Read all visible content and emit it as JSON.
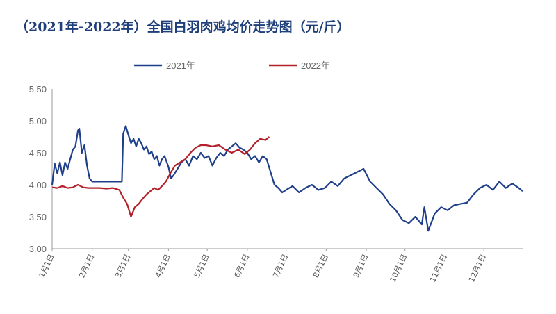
{
  "chart_data": {
    "type": "line",
    "title": "（2021年-2022年）全国白羽肉鸡均价走势图（元/斤）",
    "xlabel": "",
    "ylabel": "",
    "ylim": [
      3.0,
      5.5
    ],
    "yticks": [
      "3.00",
      "3.50",
      "4.00",
      "4.50",
      "5.00",
      "5.50"
    ],
    "x_tick_labels": [
      "1月1日",
      "2月1日",
      "3月1日",
      "4月1日",
      "5月1日",
      "6月1日",
      "7月1日",
      "8月1日",
      "9月1日",
      "10月1日",
      "11月1日",
      "12月1日"
    ],
    "legend_position": "top",
    "grid": false,
    "colors": {
      "2021": "#1f3f8a",
      "2022": "#b3202a"
    },
    "series": [
      {
        "name": "2021年",
        "points": [
          [
            "1/1",
            4.0
          ],
          [
            "1/3",
            4.33
          ],
          [
            "1/5",
            4.18
          ],
          [
            "1/7",
            4.35
          ],
          [
            "1/9",
            4.15
          ],
          [
            "1/11",
            4.35
          ],
          [
            "1/13",
            4.25
          ],
          [
            "1/15",
            4.4
          ],
          [
            "1/17",
            4.55
          ],
          [
            "1/19",
            4.6
          ],
          [
            "1/21",
            4.85
          ],
          [
            "1/22",
            4.88
          ],
          [
            "1/24",
            4.5
          ],
          [
            "1/26",
            4.62
          ],
          [
            "1/28",
            4.3
          ],
          [
            "1/30",
            4.1
          ],
          [
            "2/1",
            4.05
          ],
          [
            "2/5",
            4.05
          ],
          [
            "2/10",
            4.05
          ],
          [
            "2/15",
            4.05
          ],
          [
            "2/20",
            4.05
          ],
          [
            "2/24",
            4.05
          ],
          [
            "2/25",
            4.8
          ],
          [
            "2/27",
            4.92
          ],
          [
            "3/1",
            4.78
          ],
          [
            "3/3",
            4.65
          ],
          [
            "3/5",
            4.72
          ],
          [
            "3/7",
            4.6
          ],
          [
            "3/9",
            4.72
          ],
          [
            "3/11",
            4.65
          ],
          [
            "3/13",
            4.55
          ],
          [
            "3/15",
            4.6
          ],
          [
            "3/17",
            4.48
          ],
          [
            "3/19",
            4.52
          ],
          [
            "3/21",
            4.4
          ],
          [
            "3/23",
            4.45
          ],
          [
            "3/25",
            4.3
          ],
          [
            "3/27",
            4.4
          ],
          [
            "3/29",
            4.45
          ],
          [
            "4/1",
            4.28
          ],
          [
            "4/3",
            4.1
          ],
          [
            "4/5",
            4.15
          ],
          [
            "4/8",
            4.25
          ],
          [
            "4/11",
            4.35
          ],
          [
            "4/14",
            4.4
          ],
          [
            "4/17",
            4.3
          ],
          [
            "4/20",
            4.45
          ],
          [
            "4/23",
            4.4
          ],
          [
            "4/26",
            4.5
          ],
          [
            "4/29",
            4.42
          ],
          [
            "5/2",
            4.45
          ],
          [
            "5/5",
            4.3
          ],
          [
            "5/8",
            4.42
          ],
          [
            "5/11",
            4.5
          ],
          [
            "5/14",
            4.45
          ],
          [
            "5/17",
            4.55
          ],
          [
            "5/20",
            4.6
          ],
          [
            "5/23",
            4.65
          ],
          [
            "5/26",
            4.58
          ],
          [
            "5/29",
            4.55
          ],
          [
            "6/1",
            4.5
          ],
          [
            "6/4",
            4.4
          ],
          [
            "6/7",
            4.45
          ],
          [
            "6/10",
            4.35
          ],
          [
            "6/13",
            4.45
          ],
          [
            "6/16",
            4.4
          ],
          [
            "6/19",
            4.2
          ],
          [
            "6/22",
            4.0
          ],
          [
            "6/25",
            3.95
          ],
          [
            "6/28",
            3.88
          ],
          [
            "7/1",
            3.92
          ],
          [
            "7/6",
            3.98
          ],
          [
            "7/11",
            3.88
          ],
          [
            "7/16",
            3.95
          ],
          [
            "7/21",
            4.0
          ],
          [
            "7/26",
            3.92
          ],
          [
            "7/31",
            3.95
          ],
          [
            "8/5",
            4.05
          ],
          [
            "8/10",
            3.98
          ],
          [
            "8/15",
            4.1
          ],
          [
            "8/20",
            4.15
          ],
          [
            "8/25",
            4.2
          ],
          [
            "8/30",
            4.25
          ],
          [
            "9/4",
            4.05
          ],
          [
            "9/9",
            3.95
          ],
          [
            "9/14",
            3.85
          ],
          [
            "9/19",
            3.7
          ],
          [
            "9/24",
            3.6
          ],
          [
            "9/29",
            3.45
          ],
          [
            "10/4",
            3.4
          ],
          [
            "10/9",
            3.5
          ],
          [
            "10/14",
            3.38
          ],
          [
            "10/16",
            3.65
          ],
          [
            "10/19",
            3.28
          ],
          [
            "10/24",
            3.55
          ],
          [
            "10/29",
            3.65
          ],
          [
            "11/3",
            3.6
          ],
          [
            "11/8",
            3.68
          ],
          [
            "11/13",
            3.7
          ],
          [
            "11/18",
            3.72
          ],
          [
            "11/23",
            3.85
          ],
          [
            "11/28",
            3.95
          ],
          [
            "12/3",
            4.0
          ],
          [
            "12/8",
            3.92
          ],
          [
            "12/13",
            4.05
          ],
          [
            "12/18",
            3.95
          ],
          [
            "12/23",
            4.02
          ],
          [
            "12/28",
            3.95
          ],
          [
            "12/31",
            3.9
          ]
        ]
      },
      {
        "name": "2022年",
        "points": [
          [
            "1/1",
            3.96
          ],
          [
            "1/5",
            3.95
          ],
          [
            "1/9",
            3.98
          ],
          [
            "1/13",
            3.95
          ],
          [
            "1/17",
            3.96
          ],
          [
            "1/21",
            4.0
          ],
          [
            "1/25",
            3.96
          ],
          [
            "1/29",
            3.95
          ],
          [
            "2/2",
            3.95
          ],
          [
            "2/7",
            3.95
          ],
          [
            "2/12",
            3.94
          ],
          [
            "2/17",
            3.95
          ],
          [
            "2/22",
            3.92
          ],
          [
            "2/25",
            3.8
          ],
          [
            "2/28",
            3.7
          ],
          [
            "3/3",
            3.5
          ],
          [
            "3/6",
            3.65
          ],
          [
            "3/9",
            3.7
          ],
          [
            "3/12",
            3.78
          ],
          [
            "3/15",
            3.85
          ],
          [
            "3/18",
            3.9
          ],
          [
            "3/21",
            3.95
          ],
          [
            "3/24",
            3.92
          ],
          [
            "3/27",
            3.98
          ],
          [
            "3/30",
            4.05
          ],
          [
            "4/3",
            4.2
          ],
          [
            "4/6",
            4.3
          ],
          [
            "4/10",
            4.35
          ],
          [
            "4/14",
            4.4
          ],
          [
            "4/18",
            4.5
          ],
          [
            "4/22",
            4.58
          ],
          [
            "4/26",
            4.62
          ],
          [
            "4/30",
            4.62
          ],
          [
            "5/5",
            4.6
          ],
          [
            "5/10",
            4.62
          ],
          [
            "5/15",
            4.55
          ],
          [
            "5/20",
            4.5
          ],
          [
            "5/25",
            4.55
          ],
          [
            "5/30",
            4.48
          ],
          [
            "6/3",
            4.55
          ],
          [
            "6/7",
            4.65
          ],
          [
            "6/11",
            4.72
          ],
          [
            "6/15",
            4.7
          ],
          [
            "6/18",
            4.75
          ]
        ]
      }
    ]
  }
}
